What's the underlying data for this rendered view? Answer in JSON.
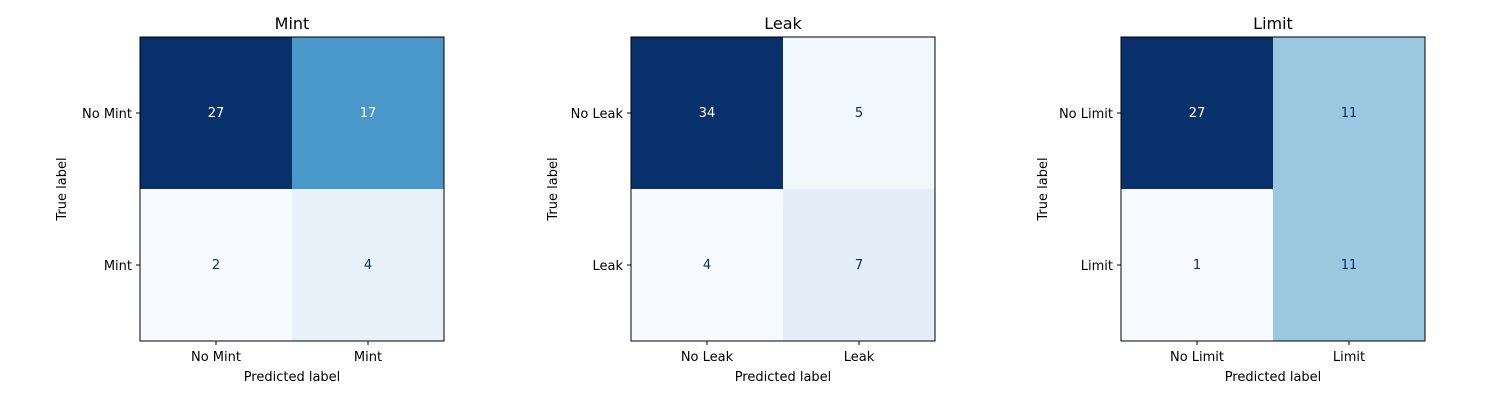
{
  "chart_data": [
    {
      "type": "heatmap",
      "title": "Mint",
      "xlabel": "Predicted label",
      "ylabel": "True label",
      "x_categories": [
        "No Mint",
        "Mint"
      ],
      "y_categories": [
        "No Mint",
        "Mint"
      ],
      "values": [
        [
          27,
          17
        ],
        [
          2,
          4
        ]
      ],
      "colormap": "Blues",
      "grid": false
    },
    {
      "type": "heatmap",
      "title": "Leak",
      "xlabel": "Predicted label",
      "ylabel": "True label",
      "x_categories": [
        "No Leak",
        "Leak"
      ],
      "y_categories": [
        "No Leak",
        "Leak"
      ],
      "values": [
        [
          34,
          5
        ],
        [
          4,
          7
        ]
      ],
      "colormap": "Blues",
      "grid": false
    },
    {
      "type": "heatmap",
      "title": "Limit",
      "xlabel": "Predicted label",
      "ylabel": "True label",
      "x_categories": [
        "No Limit",
        "Limit"
      ],
      "y_categories": [
        "No Limit",
        "Limit"
      ],
      "values": [
        [
          27,
          11
        ],
        [
          1,
          11
        ]
      ],
      "colormap": "Blues",
      "grid": false
    }
  ]
}
